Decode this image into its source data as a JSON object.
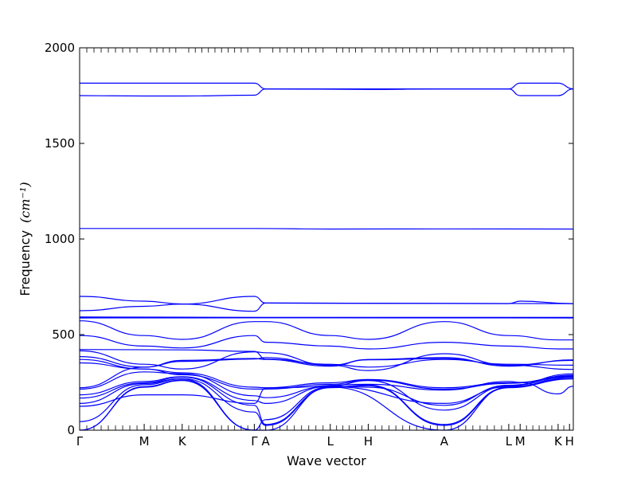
{
  "chart_data": {
    "type": "line",
    "xlabel": "Wave vector",
    "ylabel": "Frequency",
    "ylabel_unit": "(cm⁻¹)",
    "ylim": [
      0,
      2000
    ],
    "yticks": [
      0,
      500,
      1000,
      1500,
      2000
    ],
    "xlim": [
      0,
      13
    ],
    "high_symmetry_points": [
      {
        "label": "Γ",
        "x": 0
      },
      {
        "label": "M",
        "x": 1.7
      },
      {
        "label": "K",
        "x": 2.7
      },
      {
        "label": "Γ",
        "x": 4.6
      },
      {
        "label": "A",
        "x": 4.9
      },
      {
        "label": "L",
        "x": 6.6
      },
      {
        "label": "H",
        "x": 7.6
      },
      {
        "label": "A",
        "x": 9.6
      },
      {
        "label": "L",
        "x": 11.3
      },
      {
        "label": "M",
        "x": 11.6
      },
      {
        "label": "K",
        "x": 12.6
      },
      {
        "label": "H",
        "x": 12.9
      }
    ],
    "grid": false,
    "series": [
      {
        "values": [
          [
            0,
            1815
          ],
          [
            4.6,
            1815
          ],
          [
            4.9,
            1785
          ],
          [
            11.3,
            1785
          ],
          [
            11.6,
            1815
          ],
          [
            12.6,
            1815
          ],
          [
            13,
            1785
          ]
        ]
      },
      {
        "values": [
          [
            0,
            1750
          ],
          [
            1.7,
            1748
          ],
          [
            2.7,
            1748
          ],
          [
            4.6,
            1752
          ],
          [
            4.9,
            1785
          ],
          [
            7.6,
            1782
          ],
          [
            9.6,
            1785
          ],
          [
            11.3,
            1785
          ],
          [
            11.6,
            1750
          ],
          [
            12.6,
            1750
          ],
          [
            13,
            1785
          ]
        ]
      },
      {
        "values": [
          [
            0,
            1055
          ],
          [
            4.6,
            1055
          ],
          [
            6.6,
            1052
          ],
          [
            9.6,
            1053
          ],
          [
            13,
            1052
          ]
        ]
      },
      {
        "values": [
          [
            0,
            700
          ],
          [
            1.7,
            675
          ],
          [
            2.7,
            660
          ],
          [
            4.6,
            700
          ],
          [
            4.9,
            665
          ],
          [
            13,
            662
          ]
        ]
      },
      {
        "values": [
          [
            0,
            625
          ],
          [
            1.7,
            648
          ],
          [
            2.7,
            660
          ],
          [
            4.6,
            622
          ],
          [
            4.9,
            665
          ],
          [
            11.3,
            662
          ],
          [
            11.6,
            675
          ],
          [
            13,
            662
          ]
        ]
      },
      {
        "values": [
          [
            0,
            592
          ],
          [
            4.9,
            590
          ],
          [
            13,
            590
          ]
        ]
      },
      {
        "values": [
          [
            0,
            587
          ],
          [
            4.9,
            588
          ],
          [
            13,
            587
          ]
        ]
      },
      {
        "values": [
          [
            0,
            572
          ],
          [
            1.7,
            495
          ],
          [
            2.7,
            475
          ],
          [
            4.6,
            568
          ],
          [
            4.9,
            568
          ],
          [
            6.6,
            495
          ],
          [
            7.6,
            475
          ],
          [
            9.6,
            568
          ],
          [
            11.3,
            495
          ],
          [
            12.6,
            472
          ],
          [
            13,
            472
          ]
        ]
      },
      {
        "values": [
          [
            0,
            495
          ],
          [
            1.7,
            440
          ],
          [
            2.7,
            430
          ],
          [
            4.6,
            495
          ],
          [
            4.9,
            460
          ],
          [
            6.6,
            440
          ],
          [
            7.6,
            425
          ],
          [
            9.6,
            460
          ],
          [
            11.3,
            440
          ],
          [
            12.6,
            425
          ],
          [
            13,
            425
          ]
        ]
      },
      {
        "values": [
          [
            0,
            422
          ],
          [
            2.7,
            420
          ],
          [
            4.6,
            412
          ],
          [
            4.9,
            372
          ],
          [
            6.6,
            345
          ],
          [
            7.6,
            330
          ],
          [
            9.6,
            370
          ],
          [
            11.3,
            345
          ],
          [
            13,
            340
          ]
        ]
      },
      {
        "values": [
          [
            0,
            415
          ],
          [
            1.7,
            345
          ],
          [
            2.7,
            320
          ],
          [
            4.6,
            410
          ],
          [
            4.9,
            405
          ],
          [
            6.6,
            340
          ],
          [
            7.6,
            312
          ],
          [
            9.6,
            400
          ],
          [
            11.3,
            340
          ],
          [
            13,
            318
          ]
        ]
      },
      {
        "values": [
          [
            0,
            385
          ],
          [
            1.7,
            330
          ],
          [
            2.7,
            365
          ],
          [
            4.6,
            375
          ],
          [
            4.9,
            370
          ],
          [
            6.6,
            335
          ],
          [
            7.6,
            370
          ],
          [
            9.6,
            380
          ],
          [
            11.3,
            335
          ],
          [
            13,
            368
          ]
        ]
      },
      {
        "values": [
          [
            0,
            370
          ],
          [
            1.7,
            320
          ],
          [
            2.7,
            300
          ],
          [
            4.6,
            225
          ],
          [
            4.9,
            222
          ],
          [
            6.6,
            248
          ],
          [
            7.6,
            265
          ],
          [
            9.6,
            222
          ],
          [
            11.3,
            248
          ],
          [
            13,
            278
          ]
        ]
      },
      {
        "values": [
          [
            0,
            352
          ],
          [
            1.7,
            320
          ],
          [
            2.7,
            290
          ],
          [
            4.6,
            215
          ],
          [
            4.9,
            215
          ],
          [
            6.6,
            240
          ],
          [
            7.6,
            262
          ],
          [
            9.6,
            215
          ],
          [
            11.3,
            245
          ],
          [
            13,
            285
          ]
        ]
      },
      {
        "values": [
          [
            0,
            222
          ],
          [
            1.7,
            330
          ],
          [
            2.7,
            360
          ],
          [
            4.6,
            372
          ],
          [
            4.9,
            380
          ],
          [
            6.6,
            340
          ],
          [
            7.6,
            368
          ],
          [
            9.6,
            375
          ],
          [
            11.3,
            340
          ],
          [
            13,
            365
          ]
        ]
      },
      {
        "values": [
          [
            0,
            215
          ],
          [
            1.7,
            305
          ],
          [
            2.7,
            295
          ],
          [
            4.6,
            180
          ],
          [
            4.9,
            170
          ],
          [
            6.6,
            230
          ],
          [
            7.6,
            225
          ],
          [
            9.6,
            130
          ],
          [
            11.3,
            235
          ],
          [
            13,
            295
          ]
        ]
      },
      {
        "values": [
          [
            0,
            185
          ],
          [
            1.7,
            255
          ],
          [
            2.7,
            280
          ],
          [
            4.6,
            155
          ],
          [
            4.9,
            140
          ],
          [
            6.6,
            230
          ],
          [
            7.6,
            260
          ],
          [
            9.6,
            105
          ],
          [
            11.3,
            232
          ],
          [
            13,
            288
          ]
        ]
      },
      {
        "values": [
          [
            0,
            168
          ],
          [
            1.7,
            248
          ],
          [
            2.7,
            278
          ],
          [
            4.6,
            130
          ],
          [
            4.9,
            30
          ],
          [
            6.6,
            225
          ],
          [
            7.6,
            236
          ],
          [
            9.6,
            30
          ],
          [
            11.3,
            225
          ],
          [
            13,
            282
          ]
        ]
      },
      {
        "values": [
          [
            0,
            140
          ],
          [
            1.7,
            244
          ],
          [
            2.7,
            270
          ],
          [
            4.6,
            95
          ],
          [
            4.9,
            25
          ],
          [
            6.6,
            222
          ],
          [
            7.6,
            233
          ],
          [
            9.6,
            25
          ],
          [
            11.3,
            222
          ],
          [
            13,
            276
          ]
        ]
      },
      {
        "values": [
          [
            0,
            125
          ],
          [
            1.7,
            185
          ],
          [
            2.7,
            185
          ],
          [
            4.6,
            140
          ],
          [
            4.9,
            220
          ],
          [
            7.6,
            240
          ],
          [
            9.6,
            210
          ],
          [
            11.3,
            255
          ],
          [
            11.6,
            250
          ],
          [
            12.6,
            190
          ],
          [
            13,
            230
          ]
        ]
      },
      {
        "values": [
          [
            0,
            45
          ],
          [
            1.7,
            238
          ],
          [
            2.7,
            268
          ],
          [
            4.6,
            0
          ],
          [
            4.9,
            55
          ],
          [
            6.6,
            228
          ],
          [
            9.6,
            140
          ],
          [
            11.3,
            228
          ],
          [
            13,
            270
          ]
        ]
      },
      {
        "values": [
          [
            0,
            0
          ],
          [
            1.7,
            228
          ],
          [
            2.7,
            262
          ],
          [
            4.6,
            0
          ],
          [
            4.9,
            0
          ],
          [
            6.6,
            226
          ],
          [
            9.6,
            0
          ],
          [
            11.3,
            226
          ],
          [
            13,
            268
          ]
        ]
      },
      {
        "values": [
          [
            0,
            0
          ],
          [
            1.7,
            225
          ],
          [
            2.7,
            260
          ],
          [
            4.6,
            0
          ]
        ]
      }
    ]
  }
}
